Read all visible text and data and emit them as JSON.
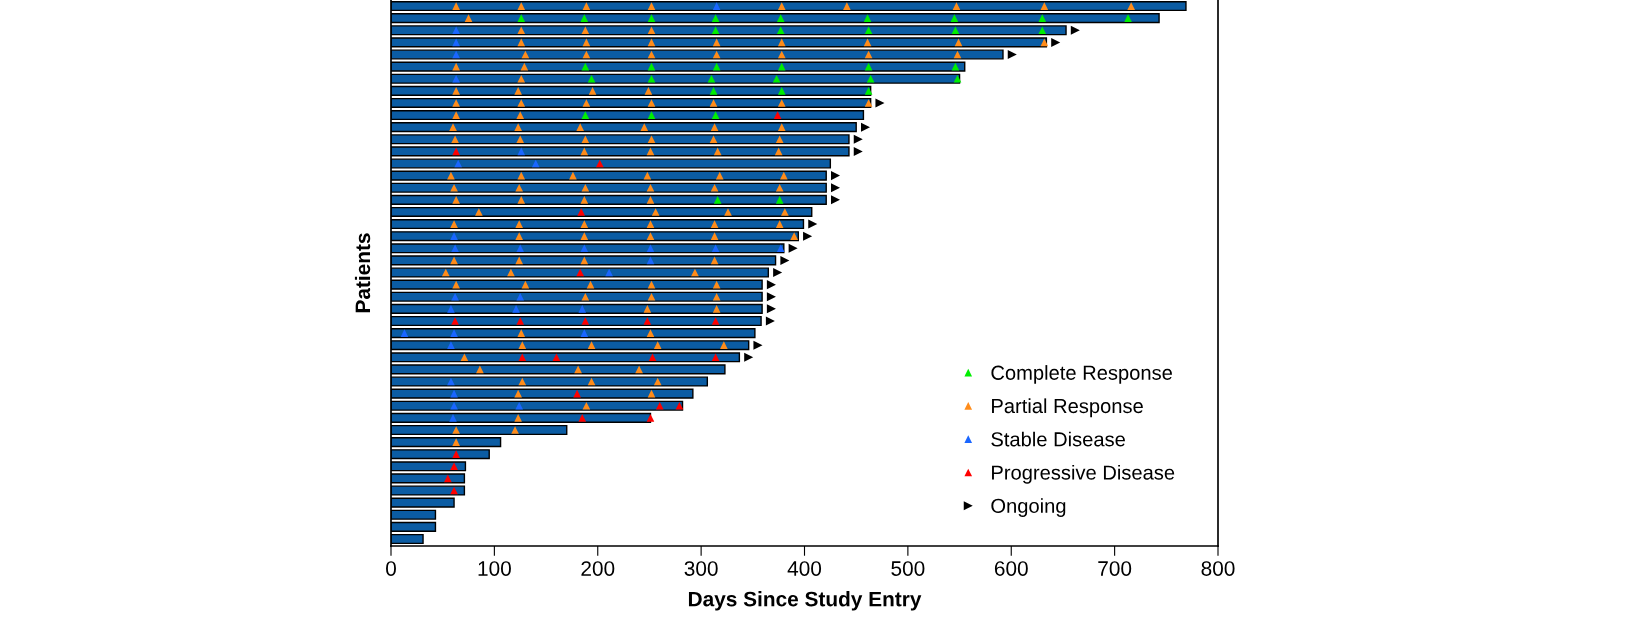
{
  "chart_data": {
    "type": "bar",
    "orientation": "horizontal",
    "xlabel": "Days Since Study Entry",
    "ylabel": "Patients",
    "xlim": [
      0,
      800
    ],
    "xticks": [
      0,
      100,
      200,
      300,
      400,
      500,
      600,
      700,
      800
    ],
    "grid": false,
    "legend": "bottom right",
    "tick_labels": "x",
    "categories": [
      null,
      null,
      null,
      null,
      null,
      null,
      null,
      null,
      null,
      null,
      null,
      null,
      null,
      null,
      null,
      null,
      null,
      null,
      null,
      null,
      null,
      null,
      null,
      null,
      null,
      null,
      null,
      null,
      null,
      null,
      null,
      null,
      null,
      null,
      null,
      null,
      null,
      null,
      null,
      null,
      null,
      null,
      null,
      null,
      null
    ],
    "series": [
      {
        "color": "#0b5ca3",
        "values": [
          769,
          743,
          653,
          634,
          592,
          555,
          550,
          464,
          464,
          457,
          450,
          443,
          443,
          425,
          421,
          421,
          421,
          407,
          399,
          394,
          380,
          372,
          365,
          359,
          359,
          359,
          358,
          352,
          346,
          337,
          323,
          306,
          292,
          282,
          251,
          170,
          106,
          95,
          72,
          71,
          71,
          61,
          43,
          43,
          31
        ]
      },
      {
        "type": "scatter",
        "name": "Complete Response",
        "color": "#00ee00",
        "marker": "triangle",
        "values": [
          null,
          126,
          314,
          null,
          null,
          188,
          194,
          312,
          null,
          188,
          null,
          null,
          null,
          null,
          null,
          null,
          316,
          null,
          null,
          null,
          null,
          null,
          null,
          null,
          null,
          null,
          null,
          null,
          null,
          null,
          null,
          null,
          null,
          null,
          null,
          null,
          null,
          null,
          null,
          null,
          null,
          null,
          null,
          null,
          null
        ]
      },
      {
        "type": "scatter",
        "color": "#00ee00",
        "marker": "triangle",
        "values": [
          null,
          187,
          377,
          null,
          null,
          252,
          252,
          378,
          null,
          252,
          null,
          null,
          null,
          null,
          null,
          null,
          376,
          null,
          null,
          null,
          null,
          null,
          null,
          null,
          null,
          null,
          null,
          null,
          null,
          null,
          null,
          null,
          null,
          null,
          null,
          null,
          null,
          null,
          null,
          null,
          null,
          null,
          null,
          null,
          null
        ]
      },
      {
        "type": "scatter",
        "color": "#00ee00",
        "marker": "triangle",
        "values": [
          null,
          252,
          462,
          null,
          null,
          315,
          310,
          462,
          null,
          314,
          null,
          null,
          null,
          null,
          null,
          null,
          null,
          null,
          null,
          null,
          null,
          null,
          null,
          null,
          null,
          null,
          null,
          null,
          null,
          null,
          null,
          null,
          null,
          null,
          null,
          null,
          null,
          null,
          null,
          null,
          null,
          null,
          null,
          null,
          null
        ]
      },
      {
        "type": "scatter",
        "color": "#00ee00",
        "marker": "triangle",
        "values": [
          null,
          314,
          546,
          null,
          null,
          378,
          373,
          null,
          null,
          null,
          null,
          null,
          null,
          null,
          null,
          null,
          null,
          null,
          null,
          null,
          null,
          null,
          null,
          null,
          null,
          null,
          null,
          null,
          null,
          null,
          null,
          null,
          null,
          null,
          null,
          null,
          null,
          null,
          null,
          null,
          null,
          null,
          null,
          null,
          null
        ]
      },
      {
        "type": "scatter",
        "color": "#00ee00",
        "marker": "triangle",
        "values": [
          null,
          377,
          630,
          null,
          null,
          462,
          464,
          null,
          null,
          null,
          null,
          null,
          null,
          null,
          null,
          null,
          null,
          null,
          null,
          null,
          null,
          null,
          null,
          null,
          null,
          null,
          null,
          null,
          null,
          null,
          null,
          null,
          null,
          null,
          null,
          null,
          null,
          null,
          null,
          null,
          null,
          null,
          null,
          null,
          null
        ]
      },
      {
        "type": "scatter",
        "color": "#00ee00",
        "marker": "triangle",
        "values": [
          null,
          461,
          null,
          null,
          null,
          546,
          548,
          null,
          null,
          null,
          null,
          null,
          null,
          null,
          null,
          null,
          null,
          null,
          null,
          null,
          null,
          null,
          null,
          null,
          null,
          null,
          null,
          null,
          null,
          null,
          null,
          null,
          null,
          null,
          null,
          null,
          null,
          null,
          null,
          null,
          null,
          null,
          null,
          null,
          null
        ]
      },
      {
        "type": "scatter",
        "color": "#00ee00",
        "marker": "triangle",
        "values": [
          null,
          545,
          null,
          null,
          null,
          null,
          null,
          null,
          null,
          null,
          null,
          null,
          null,
          null,
          null,
          null,
          null,
          null,
          null,
          null,
          null,
          null,
          null,
          null,
          null,
          null,
          null,
          null,
          null,
          null,
          null,
          null,
          null,
          null,
          null,
          null,
          null,
          null,
          null,
          null,
          null,
          null,
          null,
          null,
          null
        ]
      },
      {
        "type": "scatter",
        "color": "#00ee00",
        "marker": "triangle",
        "values": [
          null,
          630,
          null,
          null,
          null,
          null,
          null,
          null,
          null,
          null,
          null,
          null,
          null,
          null,
          null,
          null,
          null,
          null,
          null,
          null,
          null,
          null,
          null,
          null,
          null,
          null,
          null,
          null,
          null,
          null,
          null,
          null,
          null,
          null,
          null,
          null,
          null,
          null,
          null,
          null,
          null,
          null,
          null,
          null,
          null
        ]
      },
      {
        "type": "scatter",
        "color": "#00ee00",
        "marker": "triangle",
        "values": [
          null,
          713,
          null,
          null,
          null,
          null,
          null,
          null,
          null,
          null,
          null,
          null,
          null,
          null,
          null,
          null,
          null,
          null,
          null,
          null,
          null,
          null,
          null,
          null,
          null,
          null,
          null,
          null,
          null,
          null,
          null,
          null,
          null,
          null,
          null,
          null,
          null,
          null,
          null,
          null,
          null,
          null,
          null,
          null,
          null
        ]
      },
      {
        "type": "scatter",
        "name": "Partial Response",
        "color": "#ff8c1a",
        "marker": "triangle",
        "values": [
          63,
          75,
          126,
          126,
          130,
          63,
          126,
          63,
          63,
          63,
          60,
          62,
          187,
          null,
          58,
          61,
          63,
          85,
          61,
          124,
          null,
          61,
          53,
          63,
          188,
          248,
          null,
          126,
          127,
          71,
          86,
          127,
          123,
          189,
          123,
          63,
          63,
          null,
          null,
          null,
          null,
          null,
          null,
          null,
          null
        ]
      },
      {
        "type": "scatter",
        "color": "#ff8c1a",
        "marker": "triangle",
        "values": [
          126,
          null,
          188,
          189,
          189,
          129,
          null,
          123,
          126,
          125,
          123,
          125,
          251,
          null,
          126,
          124,
          126,
          256,
          124,
          187,
          null,
          124,
          116,
          130,
          252,
          315,
          null,
          251,
          194,
          null,
          181,
          194,
          252,
          null,
          null,
          120,
          null,
          null,
          null,
          null,
          null,
          null,
          null,
          null,
          null
        ]
      },
      {
        "type": "scatter",
        "color": "#ff8c1a",
        "marker": "triangle",
        "values": [
          189,
          null,
          252,
          252,
          252,
          null,
          null,
          195,
          189,
          null,
          183,
          188,
          316,
          null,
          176,
          188,
          187,
          326,
          187,
          251,
          null,
          187,
          294,
          193,
          315,
          null,
          null,
          null,
          258,
          null,
          240,
          258,
          null,
          null,
          null,
          null,
          null,
          null,
          null,
          null,
          null,
          null,
          null,
          null,
          null
        ]
      },
      {
        "type": "scatter",
        "color": "#ff8c1a",
        "marker": "triangle",
        "values": [
          252,
          null,
          null,
          315,
          315,
          null,
          null,
          249,
          252,
          null,
          245,
          252,
          375,
          null,
          248,
          251,
          251,
          381,
          251,
          313,
          null,
          313,
          null,
          252,
          null,
          null,
          null,
          null,
          322,
          null,
          null,
          null,
          null,
          null,
          null,
          null,
          null,
          null,
          null,
          null,
          null,
          null,
          null,
          null,
          null
        ]
      },
      {
        "type": "scatter",
        "color": "#ff8c1a",
        "marker": "triangle",
        "values": [
          378,
          null,
          null,
          378,
          378,
          null,
          null,
          null,
          312,
          null,
          313,
          312,
          null,
          null,
          318,
          313,
          null,
          null,
          313,
          390,
          null,
          null,
          null,
          315,
          null,
          null,
          null,
          null,
          null,
          null,
          null,
          null,
          null,
          null,
          null,
          null,
          null,
          null,
          null,
          null,
          null,
          null,
          null,
          null,
          null
        ]
      },
      {
        "type": "scatter",
        "color": "#ff8c1a",
        "marker": "triangle",
        "values": [
          441,
          null,
          null,
          461,
          462,
          null,
          null,
          null,
          378,
          null,
          378,
          376,
          null,
          null,
          380,
          376,
          null,
          null,
          376,
          null,
          null,
          null,
          null,
          null,
          null,
          null,
          null,
          null,
          null,
          null,
          null,
          null,
          null,
          null,
          null,
          null,
          null,
          null,
          null,
          null,
          null,
          null,
          null,
          null,
          null
        ]
      },
      {
        "type": "scatter",
        "color": "#ff8c1a",
        "marker": "triangle",
        "values": [
          547,
          null,
          null,
          549,
          548,
          null,
          null,
          null,
          462,
          null,
          null,
          null,
          null,
          null,
          null,
          null,
          null,
          null,
          null,
          null,
          null,
          null,
          null,
          null,
          null,
          null,
          null,
          null,
          null,
          null,
          null,
          null,
          null,
          null,
          null,
          null,
          null,
          null,
          null,
          null,
          null,
          null,
          null,
          null,
          null
        ]
      },
      {
        "type": "scatter",
        "color": "#ff8c1a",
        "marker": "triangle",
        "values": [
          632,
          null,
          null,
          632,
          null,
          null,
          null,
          null,
          null,
          null,
          null,
          null,
          null,
          null,
          null,
          null,
          null,
          null,
          null,
          null,
          null,
          null,
          null,
          null,
          null,
          null,
          null,
          null,
          null,
          null,
          null,
          null,
          null,
          null,
          null,
          null,
          null,
          null,
          null,
          null,
          null,
          null,
          null,
          null,
          null
        ]
      },
      {
        "type": "scatter",
        "color": "#ff8c1a",
        "marker": "triangle",
        "values": [
          716,
          null,
          null,
          null,
          null,
          null,
          null,
          null,
          null,
          null,
          null,
          null,
          null,
          null,
          null,
          null,
          null,
          null,
          null,
          null,
          null,
          null,
          null,
          null,
          null,
          null,
          null,
          null,
          null,
          null,
          null,
          null,
          null,
          null,
          null,
          null,
          null,
          null,
          null,
          null,
          null,
          null,
          null,
          null,
          null
        ]
      },
      {
        "type": "scatter",
        "name": "Stable Disease",
        "color": "#1a66ff",
        "marker": "triangle",
        "values": [
          315,
          null,
          63,
          63,
          63,
          null,
          63,
          null,
          null,
          null,
          null,
          null,
          126,
          65,
          null,
          null,
          null,
          null,
          null,
          61,
          62,
          251,
          211,
          null,
          62,
          58,
          null,
          13,
          58,
          null,
          null,
          58,
          61,
          61,
          60,
          null,
          null,
          null,
          null,
          null,
          null,
          null,
          null,
          null,
          null
        ]
      },
      {
        "type": "scatter",
        "color": "#1a66ff",
        "marker": "triangle",
        "values": [
          null,
          null,
          null,
          null,
          null,
          null,
          null,
          null,
          null,
          null,
          null,
          null,
          null,
          140,
          null,
          null,
          null,
          null,
          null,
          null,
          125,
          null,
          null,
          null,
          125,
          121,
          null,
          61,
          null,
          null,
          null,
          null,
          null,
          124,
          null,
          null,
          null,
          null,
          null,
          null,
          null,
          null,
          null,
          null,
          null
        ]
      },
      {
        "type": "scatter",
        "color": "#1a66ff",
        "marker": "triangle",
        "values": [
          null,
          null,
          null,
          null,
          null,
          null,
          null,
          null,
          null,
          null,
          null,
          null,
          null,
          null,
          null,
          null,
          null,
          null,
          null,
          null,
          187,
          null,
          null,
          null,
          null,
          185,
          null,
          187,
          null,
          null,
          null,
          null,
          null,
          null,
          null,
          null,
          null,
          null,
          null,
          null,
          null,
          null,
          null,
          null,
          null
        ]
      },
      {
        "type": "scatter",
        "color": "#1a66ff",
        "marker": "triangle",
        "values": [
          null,
          null,
          null,
          null,
          null,
          null,
          null,
          null,
          null,
          null,
          null,
          null,
          null,
          null,
          null,
          null,
          null,
          null,
          null,
          null,
          251,
          null,
          null,
          null,
          null,
          null,
          null,
          null,
          null,
          null,
          null,
          null,
          null,
          null,
          null,
          null,
          null,
          null,
          null,
          null,
          null,
          null,
          null,
          null,
          null
        ]
      },
      {
        "type": "scatter",
        "color": "#1a66ff",
        "marker": "triangle",
        "values": [
          null,
          null,
          null,
          null,
          null,
          null,
          null,
          null,
          null,
          null,
          null,
          null,
          null,
          null,
          null,
          null,
          null,
          null,
          null,
          null,
          314,
          null,
          null,
          null,
          null,
          null,
          null,
          null,
          null,
          null,
          null,
          null,
          null,
          null,
          null,
          null,
          null,
          null,
          null,
          null,
          null,
          null,
          null,
          null,
          null
        ]
      },
      {
        "type": "scatter",
        "color": "#1a66ff",
        "marker": "triangle",
        "values": [
          null,
          null,
          null,
          null,
          null,
          null,
          null,
          null,
          null,
          null,
          null,
          null,
          null,
          null,
          null,
          null,
          null,
          null,
          null,
          null,
          377,
          null,
          null,
          null,
          null,
          null,
          null,
          null,
          null,
          null,
          null,
          null,
          null,
          null,
          null,
          null,
          null,
          null,
          null,
          null,
          null,
          null,
          null,
          null,
          null
        ]
      },
      {
        "type": "scatter",
        "name": "Progressive Disease",
        "color": "#ff0000",
        "marker": "triangle",
        "values": [
          null,
          null,
          null,
          null,
          null,
          null,
          null,
          null,
          null,
          374,
          null,
          null,
          63,
          202,
          null,
          null,
          null,
          184,
          null,
          null,
          null,
          null,
          183,
          null,
          null,
          null,
          62,
          null,
          null,
          127,
          null,
          null,
          180,
          260,
          185,
          null,
          null,
          63,
          61,
          55,
          61,
          null,
          null,
          null,
          null
        ]
      },
      {
        "type": "scatter",
        "color": "#ff0000",
        "marker": "triangle",
        "values": [
          null,
          null,
          null,
          null,
          null,
          null,
          null,
          null,
          null,
          null,
          null,
          null,
          null,
          null,
          null,
          null,
          null,
          null,
          null,
          null,
          null,
          null,
          null,
          null,
          null,
          null,
          125,
          null,
          null,
          160,
          null,
          null,
          null,
          279,
          251,
          null,
          null,
          null,
          null,
          null,
          null,
          null,
          null,
          null,
          null
        ]
      },
      {
        "type": "scatter",
        "color": "#ff0000",
        "marker": "triangle",
        "values": [
          null,
          null,
          null,
          null,
          null,
          null,
          null,
          null,
          null,
          null,
          null,
          null,
          null,
          null,
          null,
          null,
          null,
          null,
          null,
          null,
          null,
          null,
          null,
          null,
          null,
          null,
          188,
          null,
          null,
          253,
          null,
          null,
          null,
          null,
          null,
          null,
          null,
          null,
          null,
          null,
          null,
          null,
          null,
          null,
          null
        ]
      },
      {
        "type": "scatter",
        "color": "#ff0000",
        "marker": "triangle",
        "values": [
          null,
          null,
          null,
          null,
          null,
          null,
          null,
          null,
          null,
          null,
          null,
          null,
          null,
          null,
          null,
          null,
          null,
          null,
          null,
          null,
          null,
          null,
          null,
          null,
          null,
          null,
          248,
          null,
          null,
          314,
          null,
          null,
          null,
          null,
          null,
          null,
          null,
          null,
          null,
          null,
          null,
          null,
          null,
          null,
          null
        ]
      },
      {
        "type": "scatter",
        "color": "#ff0000",
        "marker": "triangle",
        "values": [
          null,
          null,
          null,
          null,
          null,
          null,
          null,
          null,
          null,
          null,
          null,
          null,
          null,
          null,
          null,
          null,
          null,
          null,
          null,
          null,
          null,
          null,
          null,
          null,
          null,
          null,
          314,
          null,
          null,
          null,
          null,
          null,
          null,
          null,
          null,
          null,
          null,
          null,
          null,
          null,
          null,
          null,
          null,
          null,
          null
        ]
      },
      {
        "type": "scatter",
        "name": "Ongoing",
        "color": "#000000",
        "marker": "triangle",
        "values": [
          null,
          null,
          662,
          643,
          601,
          null,
          null,
          null,
          473,
          null,
          459,
          452,
          452,
          null,
          430,
          430,
          430,
          null,
          408,
          403,
          389,
          381,
          374,
          368,
          368,
          368,
          367,
          null,
          355,
          346,
          null,
          null,
          null,
          null,
          null,
          null,
          null,
          null,
          null,
          null,
          null,
          null,
          null,
          null,
          null
        ]
      }
    ]
  }
}
